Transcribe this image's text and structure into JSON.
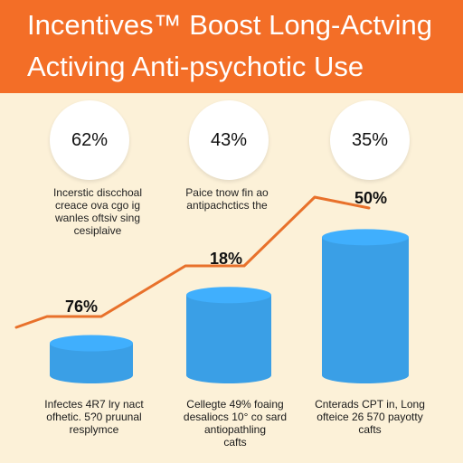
{
  "header": {
    "title_line1": "Incentives™ Boost Long-Actving",
    "title_line2": "Activing Anti-psychotic Use",
    "background_color": "#f36e27"
  },
  "stat_circles": [
    {
      "value": "62%"
    },
    {
      "value": "43%"
    },
    {
      "value": "35%"
    }
  ],
  "descriptions": [
    {
      "lines": [
        "Incerstic discchoal",
        "creace ova cgo ig",
        "wanles oftsiv sing",
        "cesiplaive"
      ]
    },
    {
      "lines": [
        "Paice tnow fin ao",
        "antipachctics the"
      ]
    }
  ],
  "captions": [
    {
      "lines": [
        "Infectes 4R7 lry nact",
        "ofhetic. 5?0 pruunal",
        "resplymce"
      ]
    },
    {
      "lines": [
        "Cellegte 49% foaing",
        "desaliocs 10° co sard",
        "antiopathling",
        "cafts"
      ]
    },
    {
      "lines": [
        "Cnterads CPT in, Long",
        "ofteice 26 570 payotty",
        "cafts"
      ]
    }
  ],
  "chart_data": {
    "type": "bar",
    "categories": [
      "",
      "",
      ""
    ],
    "series": [
      {
        "values": [
          10,
          25,
          43
        ],
        "color": "#3a9fe6"
      }
    ],
    "line_labels": [
      "76%",
      "18%",
      "50%"
    ],
    "line_color": "#e8712b"
  }
}
